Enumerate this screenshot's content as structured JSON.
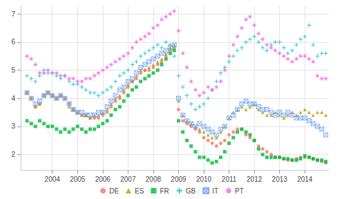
{
  "chart_data": {
    "type": "scatter",
    "x": [
      2003,
      2003.17,
      2003.33,
      2003.5,
      2003.67,
      2003.83,
      2004,
      2004.17,
      2004.33,
      2004.5,
      2004.67,
      2004.83,
      2005,
      2005.17,
      2005.33,
      2005.5,
      2005.67,
      2005.83,
      2006,
      2006.17,
      2006.33,
      2006.5,
      2006.67,
      2006.83,
      2007,
      2007.17,
      2007.33,
      2007.5,
      2007.67,
      2007.83,
      2008,
      2008.17,
      2008.33,
      2008.5,
      2008.67,
      2008.83,
      2009,
      2009.17,
      2009.33,
      2009.5,
      2009.67,
      2009.83,
      2010,
      2010.17,
      2010.33,
      2010.5,
      2010.67,
      2010.83,
      2011,
      2011.17,
      2011.33,
      2011.5,
      2011.67,
      2011.83,
      2012,
      2012.17,
      2012.33,
      2012.5,
      2012.67,
      2012.83,
      2013,
      2013.17,
      2013.33,
      2013.5,
      2013.67,
      2013.83,
      2014,
      2014.17,
      2014.33,
      2014.5,
      2014.67,
      2014.83
    ],
    "series": [
      {
        "name": "DE",
        "color": "#F8766D",
        "marker": "circle",
        "values": [
          4.2,
          4.0,
          3.7,
          3.8,
          4.1,
          4.2,
          4.1,
          4.0,
          4.1,
          4.0,
          3.8,
          3.6,
          3.5,
          3.4,
          3.4,
          3.3,
          3.3,
          3.3,
          3.4,
          3.5,
          3.7,
          3.9,
          4.0,
          4.2,
          4.4,
          4.6,
          4.7,
          4.9,
          5.0,
          5.0,
          5.1,
          5.2,
          5.3,
          5.5,
          5.7,
          5.8,
          3.6,
          3.2,
          3.1,
          3.0,
          2.9,
          2.8,
          2.6,
          2.5,
          2.4,
          2.3,
          2.4,
          2.5,
          2.7,
          2.8,
          2.9,
          2.9,
          2.7,
          2.6,
          2.5,
          2.3,
          2.2,
          2.1,
          2.0,
          1.9,
          1.9,
          1.85,
          1.8,
          1.8,
          1.85,
          1.9,
          1.9,
          1.9,
          1.85,
          1.8,
          1.75,
          1.7
        ]
      },
      {
        "name": "ES",
        "color": "#B79F00",
        "marker": "triangle",
        "values": [
          4.2,
          4.0,
          3.7,
          3.8,
          4.1,
          4.2,
          4.1,
          4.0,
          4.1,
          4.0,
          3.7,
          3.6,
          3.5,
          3.4,
          3.4,
          3.3,
          3.4,
          3.4,
          3.5,
          3.6,
          3.8,
          4.0,
          4.1,
          4.3,
          4.5,
          4.6,
          4.8,
          5.0,
          5.0,
          5.1,
          5.2,
          5.3,
          5.4,
          5.6,
          5.8,
          5.9,
          3.9,
          3.4,
          3.2,
          3.1,
          3.0,
          2.9,
          2.8,
          2.7,
          2.6,
          2.6,
          2.8,
          3.0,
          3.3,
          3.5,
          3.6,
          3.7,
          3.6,
          3.7,
          3.8,
          3.6,
          3.5,
          3.4,
          3.4,
          3.5,
          3.4,
          3.3,
          3.4,
          3.5,
          3.4,
          3.5,
          3.6,
          3.5,
          3.4,
          3.5,
          3.5,
          3.4
        ]
      },
      {
        "name": "FR",
        "color": "#00BA38",
        "marker": "square",
        "values": [
          3.2,
          3.1,
          3.0,
          3.2,
          3.1,
          3.0,
          3.0,
          2.9,
          2.8,
          2.9,
          2.8,
          2.9,
          3.0,
          2.9,
          2.8,
          2.9,
          2.9,
          3.0,
          3.1,
          3.2,
          3.4,
          3.6,
          3.7,
          3.9,
          4.1,
          4.3,
          4.4,
          4.6,
          4.7,
          4.8,
          4.9,
          5.0,
          5.2,
          5.4,
          5.6,
          5.7,
          3.2,
          2.8,
          2.5,
          2.3,
          2.1,
          1.9,
          1.9,
          1.8,
          1.7,
          1.75,
          1.9,
          2.1,
          2.4,
          2.6,
          2.8,
          2.9,
          2.8,
          2.7,
          2.5,
          2.2,
          2.0,
          1.9,
          1.9,
          1.9,
          1.9,
          1.85,
          1.85,
          1.8,
          1.8,
          1.85,
          1.95,
          1.9,
          1.85,
          1.8,
          1.8,
          1.75
        ]
      },
      {
        "name": "GB",
        "color": "#00BFC4",
        "marker": "plus",
        "values": [
          4.8,
          4.7,
          4.6,
          4.8,
          5.0,
          4.9,
          4.9,
          4.8,
          4.7,
          4.8,
          4.6,
          4.5,
          4.5,
          4.4,
          4.3,
          4.2,
          4.2,
          4.1,
          4.2,
          4.3,
          4.4,
          4.6,
          4.8,
          4.9,
          5.0,
          5.2,
          5.3,
          5.5,
          5.6,
          5.7,
          5.8,
          5.9,
          5.8,
          6.0,
          5.9,
          5.5,
          4.8,
          4.4,
          4.1,
          3.8,
          3.6,
          3.7,
          3.8,
          4.0,
          4.3,
          4.6,
          4.9,
          5.1,
          5.3,
          5.5,
          5.7,
          5.8,
          6.0,
          6.1,
          6.2,
          6.0,
          5.8,
          5.7,
          5.9,
          6.0,
          6.0,
          5.8,
          5.6,
          5.7,
          5.9,
          6.1,
          6.2,
          6.6,
          5.9,
          5.5,
          5.6,
          5.6
        ]
      },
      {
        "name": "IT",
        "color": "#619CFF",
        "marker": "cross",
        "values": [
          4.2,
          4.0,
          3.8,
          3.9,
          4.1,
          4.2,
          4.1,
          4.0,
          4.1,
          4.0,
          3.8,
          3.6,
          3.5,
          3.5,
          3.4,
          3.4,
          3.4,
          3.5,
          3.5,
          3.7,
          3.9,
          4.1,
          4.3,
          4.4,
          4.6,
          4.7,
          4.9,
          5.1,
          5.2,
          5.3,
          5.4,
          5.5,
          5.6,
          5.7,
          5.8,
          5.9,
          4.0,
          3.4,
          3.2,
          3.1,
          3.0,
          3.1,
          3.0,
          2.9,
          2.8,
          2.7,
          2.9,
          3.0,
          3.3,
          3.4,
          3.6,
          3.8,
          3.9,
          3.8,
          3.8,
          3.7,
          3.6,
          3.6,
          3.5,
          3.4,
          3.5,
          3.4,
          3.5,
          3.4,
          3.3,
          3.3,
          3.3,
          3.2,
          3.1,
          3.0,
          2.9,
          2.7
        ]
      },
      {
        "name": "PT",
        "color": "#F564E3",
        "marker": "star",
        "values": [
          5.5,
          5.4,
          5.2,
          4.9,
          4.9,
          5.0,
          4.9,
          4.9,
          4.8,
          4.8,
          4.7,
          4.7,
          4.6,
          4.6,
          4.7,
          4.7,
          4.8,
          4.9,
          5.0,
          5.1,
          5.2,
          5.3,
          5.4,
          5.5,
          5.6,
          5.8,
          6.0,
          6.1,
          6.2,
          6.3,
          6.5,
          6.6,
          6.8,
          6.9,
          7.0,
          7.1,
          6.4,
          5.6,
          5.1,
          4.6,
          4.3,
          4.1,
          4.2,
          4.4,
          4.3,
          4.4,
          4.6,
          5.0,
          5.5,
          5.9,
          6.2,
          6.5,
          6.8,
          6.9,
          6.6,
          6.3,
          6.1,
          5.9,
          5.8,
          5.7,
          5.6,
          5.5,
          5.4,
          5.3,
          5.4,
          5.5,
          5.5,
          5.4,
          5.3,
          4.8,
          4.7,
          4.7
        ]
      }
    ],
    "xlim": [
      2002.75,
      2014.95
    ],
    "xticks": [
      2004,
      2005,
      2006,
      2007,
      2008,
      2009,
      2010,
      2011,
      2012,
      2013,
      2014
    ],
    "ylim": [
      1.45,
      7.3
    ],
    "yticks": [
      2,
      3,
      4,
      5,
      6,
      7
    ],
    "grid": true,
    "legend": "bottom"
  }
}
